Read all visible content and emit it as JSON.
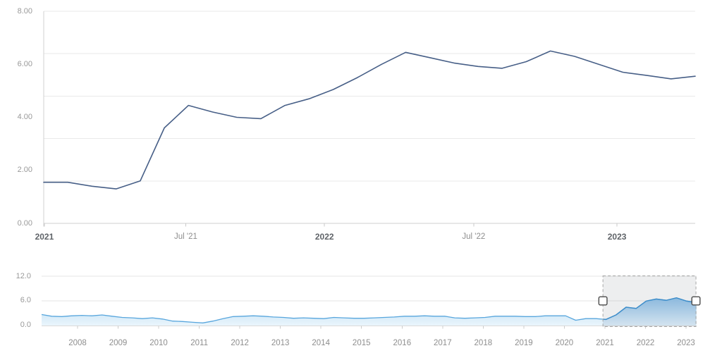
{
  "page": {
    "background": "#ffffff"
  },
  "chart_data": [
    {
      "id": "main",
      "type": "line",
      "title": "",
      "xlabel": "",
      "ylabel": "",
      "ylim": [
        0,
        8
      ],
      "grid": true,
      "gridline_count": 6,
      "x_range": [
        "Jan 2021",
        "Apr 2023"
      ],
      "y_ticks": [
        {
          "label": "8.00",
          "value": 8
        },
        {
          "label": "6.00",
          "value": 6
        },
        {
          "label": "4.00",
          "value": 4
        },
        {
          "label": "2.00",
          "value": 2
        },
        {
          "label": "0.00",
          "value": 0
        }
      ],
      "x_ticks": [
        {
          "label": "2021",
          "pos": 0.001,
          "bold": true
        },
        {
          "label": "Jul '21",
          "pos": 0.218,
          "bold": false
        },
        {
          "label": "2022",
          "pos": 0.431,
          "bold": true
        },
        {
          "label": "Jul '22",
          "pos": 0.66,
          "bold": false
        },
        {
          "label": "2023",
          "pos": 0.88,
          "bold": true
        }
      ],
      "series": [
        {
          "color": "#475f87",
          "values": [
            1.55,
            1.55,
            1.4,
            1.3,
            1.6,
            3.6,
            4.45,
            4.2,
            4.0,
            3.95,
            4.45,
            4.7,
            5.05,
            5.5,
            6.0,
            6.45,
            6.25,
            6.05,
            5.92,
            5.85,
            6.1,
            6.5,
            6.3,
            6.0,
            5.7,
            5.58,
            5.45,
            5.55
          ]
        }
      ],
      "colors": {
        "grid": "#e9e9e9",
        "axis": "#cfcfcf",
        "y_axis_line": "#d2d2d2",
        "tick": "#c9c9c9"
      }
    },
    {
      "id": "navigator",
      "type": "area",
      "title": "",
      "ylim": [
        0,
        12
      ],
      "grid": true,
      "x_range": [
        "2007",
        "2023"
      ],
      "y_ticks": [
        {
          "label": "12.0",
          "value": 12
        },
        {
          "label": "6.0",
          "value": 6
        },
        {
          "label": "0.0",
          "value": 0
        }
      ],
      "x_ticks": [
        {
          "label": "2008",
          "pos": 0.0549
        },
        {
          "label": "2009",
          "pos": 0.1168
        },
        {
          "label": "2010",
          "pos": 0.1787
        },
        {
          "label": "2011",
          "pos": 0.2407
        },
        {
          "label": "2012",
          "pos": 0.3026
        },
        {
          "label": "2013",
          "pos": 0.3645
        },
        {
          "label": "2014",
          "pos": 0.4265
        },
        {
          "label": "2015",
          "pos": 0.4884
        },
        {
          "label": "2016",
          "pos": 0.5504
        },
        {
          "label": "2017",
          "pos": 0.6123
        },
        {
          "label": "2018",
          "pos": 0.6742
        },
        {
          "label": "2019",
          "pos": 0.7362
        },
        {
          "label": "2020",
          "pos": 0.7981
        },
        {
          "label": "2021",
          "pos": 0.8601
        },
        {
          "label": "2022",
          "pos": 0.922
        },
        {
          "label": "2023",
          "pos": 0.9839
        }
      ],
      "series": [
        {
          "color": "#58a6dd",
          "fill_top": "#9ccdec",
          "fill_bottom": "#eaf5fc",
          "values": [
            2.6,
            2.2,
            2.1,
            2.3,
            2.4,
            2.3,
            2.5,
            2.2,
            1.9,
            1.8,
            1.6,
            1.8,
            1.5,
            1.0,
            0.9,
            0.7,
            0.55,
            1.0,
            1.6,
            2.1,
            2.2,
            2.3,
            2.2,
            2.0,
            1.9,
            1.7,
            1.8,
            1.7,
            1.6,
            1.9,
            1.8,
            1.7,
            1.7,
            1.8,
            1.9,
            2.0,
            2.2,
            2.2,
            2.3,
            2.2,
            2.2,
            1.8,
            1.7,
            1.8,
            1.9,
            2.2,
            2.2,
            2.2,
            2.1,
            2.1,
            2.3,
            2.3,
            2.3,
            1.2,
            1.6,
            1.6,
            1.4,
            2.5,
            4.4,
            4.1,
            5.9,
            6.4,
            6.1,
            6.7,
            5.9,
            5.5
          ]
        }
      ],
      "selection": {
        "start_pos": 0.857,
        "end_pos": 0.999,
        "fill": "rgba(128,134,140,0.14)",
        "border_color": "#a6a6a6",
        "handle_fill": "#ffffff",
        "handle_border": "#4a4a4a",
        "selected_line": "#3d8dca",
        "selected_fill_top": "#5e9ed2",
        "selected_fill_bottom": "#d3e3ef"
      },
      "colors": {
        "grid": "#e6e6e6",
        "axis": "#dadada",
        "tick": "#cccccc"
      }
    }
  ]
}
